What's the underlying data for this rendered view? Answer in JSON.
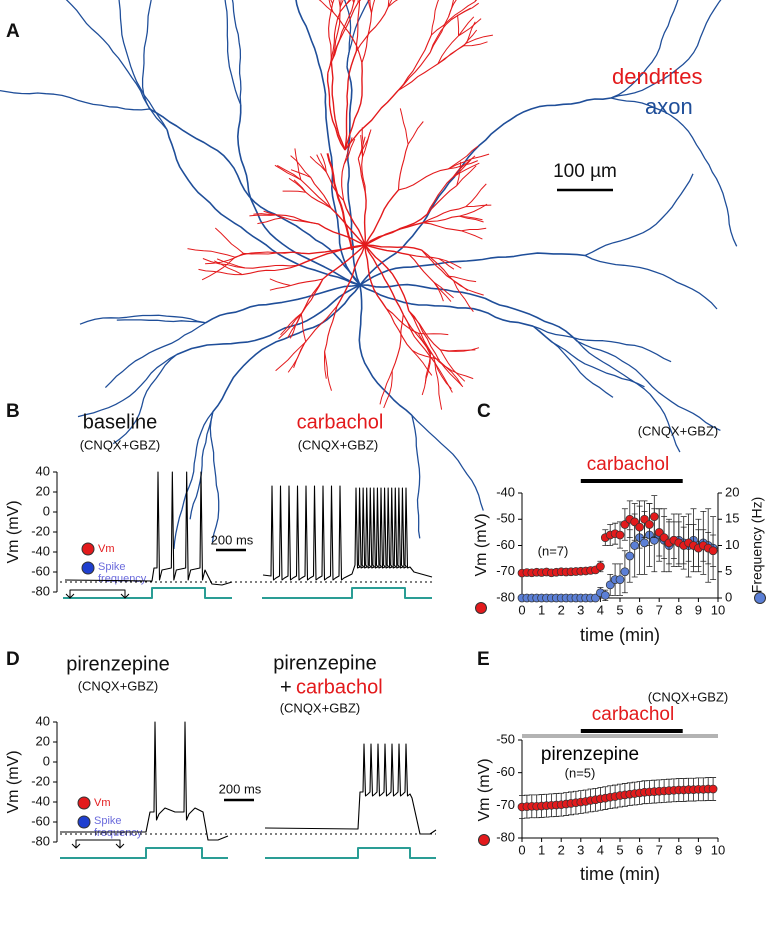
{
  "figure": {
    "panel_a": {
      "label": "A",
      "legend_dendrites": "dendrites",
      "legend_axon": "axon",
      "scale_bar": "100 µm"
    },
    "panel_b": {
      "label": "B",
      "left_title": "baseline",
      "left_subtitle": "(CNQX+GBZ)",
      "right_title": "carbachol",
      "right_subtitle": "(CNQX+GBZ)",
      "ylabel": "Vm (mV)",
      "ylim": [
        -80,
        40
      ],
      "yticks": [
        40,
        20,
        0,
        -20,
        -40,
        -60,
        -80
      ],
      "scale_bar": "200 ms",
      "legend_vm": "Vm",
      "legend_spike_1": "Spike",
      "legend_spike_2": "frequency"
    },
    "panel_d": {
      "label": "D",
      "left_title": "pirenzepine",
      "left_subtitle": "(CNQX+GBZ)",
      "right_title": "pirenzepine",
      "right_plus": "+",
      "right_title_2": "carbachol",
      "right_subtitle": "(CNQX+GBZ)",
      "ylabel": "Vm (mV)",
      "ylim": [
        -80,
        40
      ],
      "yticks": [
        40,
        20,
        0,
        -20,
        -40,
        -60,
        -80
      ],
      "scale_bar": "200 ms",
      "legend_vm": "Vm",
      "legend_spike_1": "Spike",
      "legend_spike_2": "frequency"
    }
  },
  "chart_data": [
    {
      "type": "scatter",
      "label": "C",
      "title": "(CNQX+GBZ)",
      "xlabel": "time (min)",
      "ylabel": "Vm (mV)",
      "y2label": "Frequency (Hz)",
      "notes": [
        "(n=7)"
      ],
      "annotations": [
        {
          "text": "carbachol",
          "x": [
            3,
            8.2
          ],
          "color": "#000000",
          "text_color": "#e31a1c"
        }
      ],
      "xlim": [
        0,
        10
      ],
      "xticks": [
        0,
        1,
        2,
        3,
        4,
        5,
        6,
        7,
        8,
        9,
        10
      ],
      "ylim": [
        -80,
        -40
      ],
      "yticks": [
        -80,
        -70,
        -60,
        -50,
        -40
      ],
      "y2lim": [
        0,
        20
      ],
      "y2ticks": [
        0,
        5,
        10,
        15,
        20
      ],
      "x": [
        0,
        0.25,
        0.5,
        0.75,
        1,
        1.25,
        1.5,
        1.75,
        2,
        2.25,
        2.5,
        2.75,
        3,
        3.25,
        3.5,
        3.75,
        4,
        4.25,
        4.5,
        4.75,
        5,
        5.25,
        5.5,
        5.75,
        6,
        6.25,
        6.5,
        6.75,
        7,
        7.25,
        7.5,
        7.75,
        8,
        8.25,
        8.5,
        8.75,
        9,
        9.25,
        9.5,
        9.75
      ],
      "series": [
        {
          "color": "#e31a1c",
          "axis": "y",
          "values": [
            -70.5,
            -70.3,
            -70.4,
            -70.2,
            -70.3,
            -70.1,
            -70.4,
            -70.2,
            -70.0,
            -70.1,
            -70.0,
            -69.9,
            -69.8,
            -69.7,
            -69.5,
            -69.3,
            -68,
            -57,
            -56,
            -55.5,
            -56,
            -52,
            -50,
            -51,
            -53,
            -50,
            -52,
            -49,
            -55,
            -57,
            -59,
            -58,
            -59,
            -60,
            -59,
            -60,
            -61,
            -60,
            -61,
            -62
          ],
          "errors": [
            1,
            1,
            1,
            1,
            1,
            1,
            1,
            1,
            1,
            1,
            1,
            1,
            1,
            1,
            1,
            1,
            2,
            3,
            4,
            4,
            5,
            6,
            7,
            7,
            8,
            7,
            8,
            8,
            9,
            8,
            8,
            7,
            8,
            7,
            7,
            8,
            7,
            6,
            6,
            6
          ]
        },
        {
          "color": "#5b7fd6",
          "axis": "y2",
          "values": [
            0,
            0,
            0,
            0,
            0,
            0,
            0,
            0,
            0,
            0,
            0,
            0,
            0,
            0,
            0,
            0,
            1,
            0.5,
            2.5,
            3.5,
            3.5,
            5,
            8,
            10,
            11.5,
            10.5,
            12,
            11,
            12,
            11,
            10,
            11,
            11,
            10.5,
            10,
            11,
            10,
            10.5,
            10,
            9.5
          ],
          "errors": [
            0,
            0,
            0,
            0,
            0,
            0,
            0,
            0,
            0,
            0,
            0,
            0,
            0,
            0,
            0,
            0,
            1,
            1,
            2,
            3,
            3,
            4,
            5,
            6,
            7,
            6,
            6,
            6,
            5,
            6,
            5,
            5,
            5,
            5,
            6,
            6,
            5,
            6,
            7,
            6
          ]
        }
      ]
    },
    {
      "type": "scatter",
      "label": "E",
      "title": "(CNQX+GBZ)",
      "xlabel": "time (min)",
      "ylabel": "Vm (mV)",
      "notes": [
        "(n=5)"
      ],
      "annotations": [
        {
          "text": "carbachol",
          "x": [
            3,
            8.2
          ],
          "color": "#000000",
          "text_color": "#e31a1c"
        },
        {
          "text": "pirenzepine",
          "x": [
            0,
            10
          ],
          "color": "#b3b3b3",
          "text_color": "#000000"
        }
      ],
      "xlim": [
        0,
        10
      ],
      "xticks": [
        0,
        1,
        2,
        3,
        4,
        5,
        6,
        7,
        8,
        9,
        10
      ],
      "ylim": [
        -80,
        -50
      ],
      "yticks": [
        -80,
        -70,
        -60,
        -50
      ],
      "x": [
        0,
        0.25,
        0.5,
        0.75,
        1,
        1.25,
        1.5,
        1.75,
        2,
        2.25,
        2.5,
        2.75,
        3,
        3.25,
        3.5,
        3.75,
        4,
        4.25,
        4.5,
        4.75,
        5,
        5.25,
        5.5,
        5.75,
        6,
        6.25,
        6.5,
        6.75,
        7,
        7.25,
        7.5,
        7.75,
        8,
        8.25,
        8.5,
        8.75,
        9,
        9.25,
        9.5,
        9.75
      ],
      "series": [
        {
          "color": "#e31a1c",
          "axis": "y",
          "values": [
            -70.5,
            -70.4,
            -70.3,
            -70.3,
            -70.2,
            -70.1,
            -70.0,
            -69.9,
            -69.8,
            -69.6,
            -69.4,
            -69.2,
            -69.0,
            -68.8,
            -68.5,
            -68.3,
            -68.0,
            -67.8,
            -67.5,
            -67.3,
            -67.0,
            -66.8,
            -66.6,
            -66.4,
            -66.2,
            -66.0,
            -65.9,
            -65.8,
            -65.7,
            -65.6,
            -65.5,
            -65.4,
            -65.3,
            -65.3,
            -65.2,
            -65.2,
            -65.1,
            -65.1,
            -65.0,
            -65.0
          ],
          "errors": [
            3.5,
            3.5,
            3.5,
            3.5,
            3.5,
            3.5,
            3.5,
            3.5,
            3.5,
            3.5,
            3.5,
            3.5,
            3.5,
            3.5,
            3.5,
            3.5,
            3.5,
            3.5,
            3.5,
            3.5,
            3.5,
            3.5,
            3.5,
            3.5,
            3.5,
            3.5,
            3.5,
            3.5,
            3.5,
            3.5,
            3.5,
            3.5,
            3.5,
            3.5,
            3.5,
            3.5,
            3.5,
            3.5,
            3.5,
            3.5
          ]
        }
      ]
    }
  ]
}
